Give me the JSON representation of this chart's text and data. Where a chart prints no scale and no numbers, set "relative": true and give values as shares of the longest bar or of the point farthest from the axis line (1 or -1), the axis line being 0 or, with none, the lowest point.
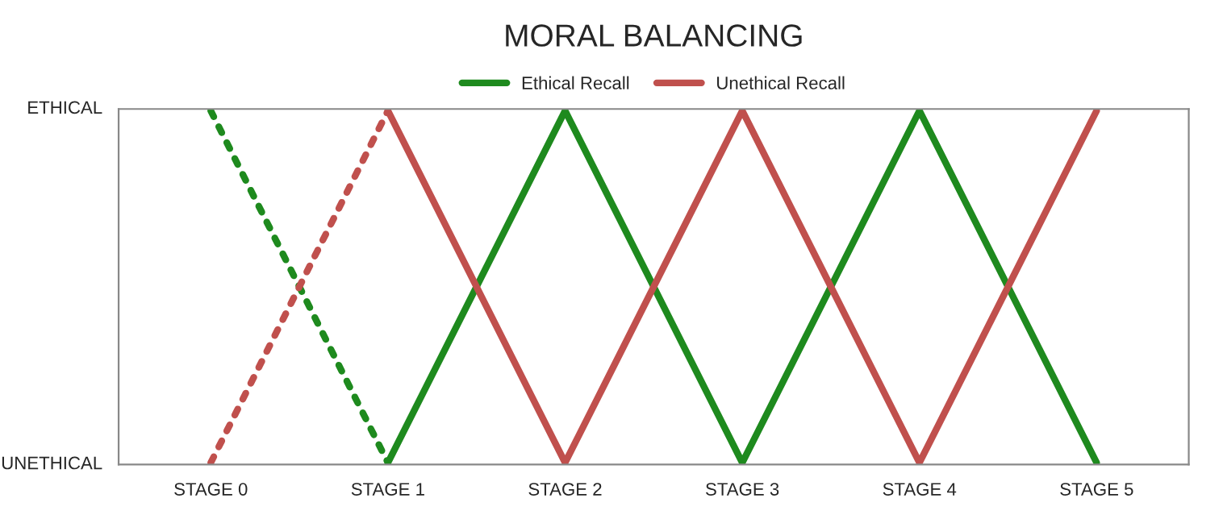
{
  "chart_data": {
    "type": "line",
    "title": "MORAL BALANCING",
    "categories": [
      "STAGE 0",
      "STAGE 1",
      "STAGE 2",
      "STAGE 3",
      "STAGE 4",
      "STAGE 5"
    ],
    "series": [
      {
        "name": "Ethical Recall",
        "color": "#1e8a1e",
        "values": [
          null,
          0,
          1,
          0,
          1,
          0
        ],
        "line_style": "solid"
      },
      {
        "name": "Unethical Recall",
        "color": "#c0504d",
        "values": [
          null,
          1,
          0,
          1,
          0,
          1
        ],
        "line_style": "solid"
      },
      {
        "color": "#1e8a1e",
        "values": [
          1,
          0,
          null,
          null,
          null,
          null
        ],
        "line_style": "dotted"
      },
      {
        "color": "#c0504d",
        "values": [
          0,
          1,
          null,
          null,
          null,
          null
        ],
        "line_style": "dotted"
      }
    ],
    "relative": true,
    "annotations": [
      "ETHICAL",
      "UNETHICAL"
    ],
    "grid": false,
    "legend": "top",
    "marker": "none"
  }
}
